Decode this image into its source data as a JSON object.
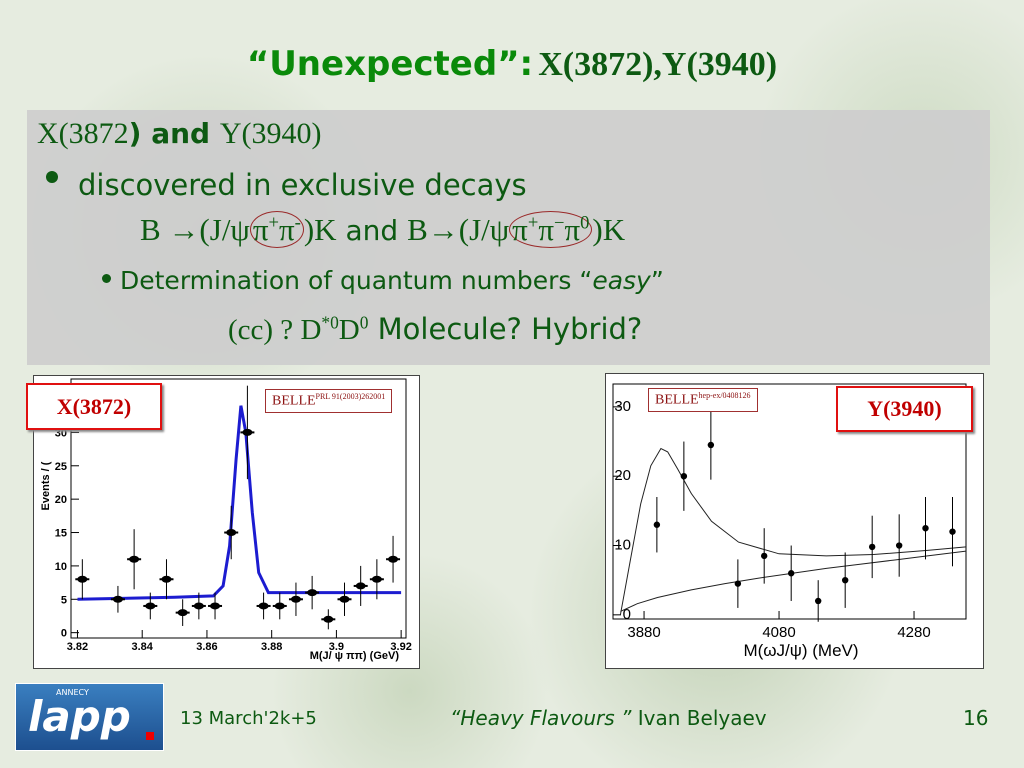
{
  "title": {
    "prefix": "“Unexpected”:",
    "particles": "X(3872),Y(3940)"
  },
  "box": {
    "heading": [
      "X(3872",
      ") and ",
      "Y(3940)"
    ],
    "bullet": "discovered in exclusive decays",
    "decays": [
      "B →(J/ψ",
      "π",
      "+",
      "π",
      "-",
      ")K",
      " and ",
      "B→(J/ψ",
      "π",
      "+",
      "π",
      "−",
      "π",
      "0",
      ")K"
    ],
    "sub_bullet": [
      "Determination of quantum numbers “",
      "easy",
      "”"
    ],
    "options": [
      "(cc) ? ",
      "D",
      "*0",
      "D",
      "0",
      " Molecule? Hybrid?"
    ]
  },
  "chart_data": [
    {
      "type": "scatter",
      "label": "X(3872)",
      "source": "BELLE",
      "reference": "PRL 91(2003)262001",
      "x_label": "M(J/ ψ ππ) (GeV)",
      "y_label": "Events / (",
      "xlim": [
        3.818,
        3.9215
      ],
      "ylim": [
        -0.8,
        38
      ],
      "xticks": [
        3.82,
        3.84,
        3.86,
        3.88,
        3.9,
        3.92
      ],
      "yticks": [
        0,
        5,
        10,
        15,
        20,
        25,
        30
      ],
      "series": [
        {
          "color": "#000000",
          "x": [
            3.8215,
            3.8325,
            3.8375,
            3.8425,
            3.8475,
            3.8525,
            3.8575,
            3.8625,
            3.8675,
            3.8725,
            3.8775,
            3.8825,
            3.8875,
            3.8925,
            3.8975,
            3.9025,
            3.9075,
            3.9125,
            3.9175
          ],
          "values": [
            8,
            5,
            11,
            4,
            8,
            3,
            4,
            4,
            15,
            30,
            4,
            4,
            5,
            6,
            2,
            5,
            7,
            8,
            11
          ],
          "errors": [
            3,
            2,
            4.5,
            2,
            3,
            2,
            2,
            2,
            4,
            7,
            2,
            2,
            2.5,
            2.5,
            1.5,
            2.5,
            3,
            3,
            3.5
          ]
        }
      ],
      "fits": [
        {
          "color": "#1c1cd0",
          "x": [
            3.82,
            3.85,
            3.862,
            3.865,
            3.867,
            3.869,
            3.8705,
            3.872,
            3.874,
            3.876,
            3.879,
            3.9,
            3.92
          ],
          "values": [
            5,
            5.3,
            5.5,
            7,
            13,
            26,
            34,
            30,
            18,
            9,
            6,
            6,
            6
          ]
        }
      ]
    },
    {
      "type": "scatter",
      "label": "Y(3940)",
      "source": "BELLE",
      "reference": "hep-ex/0408126",
      "x_label": "M(ωJ/ψ) (MeV)",
      "xlim": [
        3834,
        4357
      ],
      "ylim": [
        -0.6,
        33.3
      ],
      "xticks": [
        3880,
        4080,
        4280
      ],
      "yticks": [
        0,
        10,
        20,
        30
      ],
      "series": [
        {
          "color": "#000000",
          "x": [
            3899,
            3939,
            3979,
            4019,
            4058,
            4098,
            4138,
            4178,
            4218,
            4258,
            4297,
            4337
          ],
          "values": [
            13,
            20,
            24.5,
            4.5,
            8.5,
            6,
            2,
            5,
            9.8,
            10,
            12.5,
            12
          ],
          "errors": [
            4,
            5,
            5,
            3.5,
            4,
            4,
            3,
            4,
            4.5,
            4.5,
            4.5,
            5
          ]
        }
      ],
      "fits": [
        {
          "color": "#222222",
          "x": [
            3845,
            3860,
            3875,
            3890,
            3905,
            3915,
            3930,
            3950,
            3980,
            4020,
            4080,
            4150,
            4220,
            4300,
            4357
          ],
          "values": [
            0,
            8,
            16,
            21.5,
            24,
            23.5,
            21,
            17.5,
            13.5,
            10.5,
            8.8,
            8.5,
            8.7,
            9.3,
            9.8
          ]
        },
        {
          "color": "#222222",
          "x": [
            3845,
            3870,
            3900,
            3950,
            4000,
            4050,
            4100,
            4150,
            4200,
            4250,
            4300,
            4357
          ],
          "values": [
            0.5,
            1.6,
            2.5,
            3.6,
            4.5,
            5.3,
            6,
            6.7,
            7.3,
            7.9,
            8.5,
            9.2
          ]
        }
      ]
    }
  ],
  "footer": {
    "logo_top": "ANNECY",
    "logo": "lapp",
    "date": "13 March'2k+5",
    "talk": "“Heavy Flavours ”",
    "author": "Ivan  Belyaev",
    "page": "16"
  }
}
